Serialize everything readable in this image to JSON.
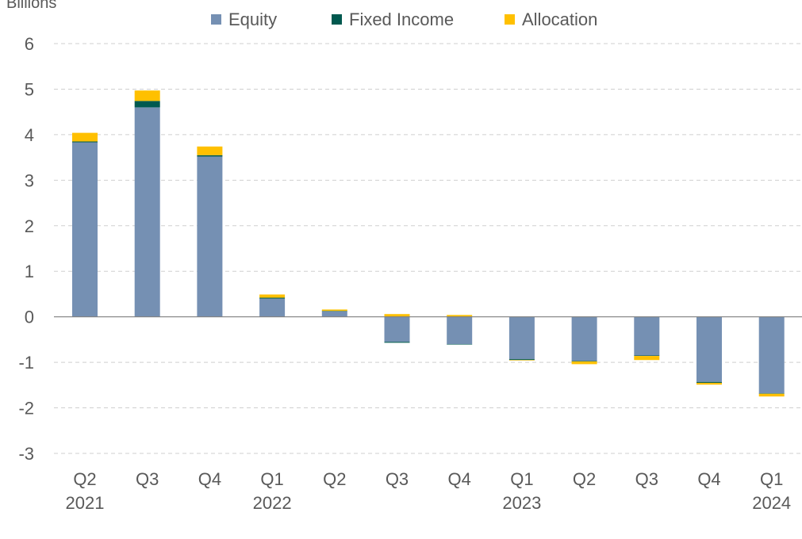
{
  "chart_data": {
    "type": "bar",
    "stacked": true,
    "unit_label": "Billions",
    "ylim": [
      -3,
      6
    ],
    "yticks": [
      6,
      5,
      4,
      3,
      2,
      1,
      0,
      -1,
      -2,
      -3
    ],
    "grid": true,
    "legend_position": "top-center",
    "categories": [
      {
        "quarter": "Q2",
        "year": "2021"
      },
      {
        "quarter": "Q3",
        "year": ""
      },
      {
        "quarter": "Q4",
        "year": ""
      },
      {
        "quarter": "Q1",
        "year": "2022"
      },
      {
        "quarter": "Q2",
        "year": ""
      },
      {
        "quarter": "Q3",
        "year": ""
      },
      {
        "quarter": "Q4",
        "year": ""
      },
      {
        "quarter": "Q1",
        "year": "2023"
      },
      {
        "quarter": "Q2",
        "year": ""
      },
      {
        "quarter": "Q3",
        "year": ""
      },
      {
        "quarter": "Q4",
        "year": ""
      },
      {
        "quarter": "Q1",
        "year": "2024"
      }
    ],
    "series": [
      {
        "name": "Equity",
        "color": "#7590b3",
        "values": [
          3.83,
          4.6,
          3.52,
          0.4,
          0.12,
          -0.55,
          -0.6,
          -0.93,
          -0.97,
          -0.85,
          -1.43,
          -1.68
        ]
      },
      {
        "name": "Fixed Income",
        "color": "#00594f",
        "values": [
          0.02,
          0.14,
          0.03,
          0.02,
          0.01,
          -0.02,
          -0.01,
          -0.02,
          -0.01,
          -0.01,
          -0.02,
          -0.01
        ]
      },
      {
        "name": "Allocation",
        "color": "#ffc000",
        "values": [
          0.19,
          0.23,
          0.19,
          0.07,
          0.03,
          0.06,
          0.04,
          -0.01,
          -0.06,
          -0.09,
          -0.04,
          -0.06
        ]
      }
    ]
  }
}
